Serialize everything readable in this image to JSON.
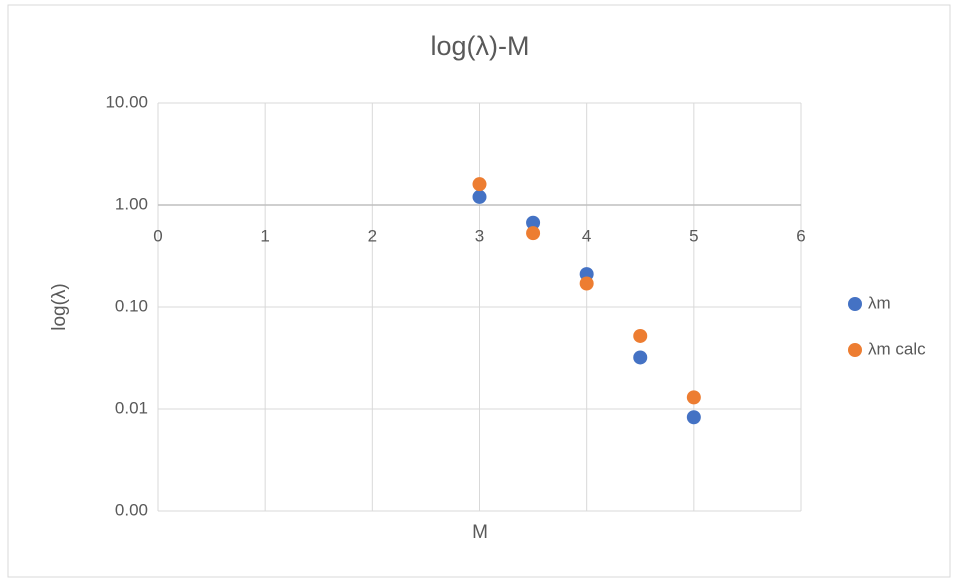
{
  "chart_data": {
    "type": "scatter",
    "title": "log(λ)-M",
    "x_label": "M",
    "y_label": "log(λ)",
    "series": [
      {
        "name": "λm",
        "color": "#4472c4",
        "x": [
          3,
          3.5,
          4,
          4.5,
          5
        ],
        "values": [
          1.2,
          0.67,
          0.21,
          0.032,
          0.0083
        ]
      },
      {
        "name": "λm calc",
        "color": "#ed7d31",
        "x": [
          3,
          3.5,
          4,
          4.5,
          5
        ],
        "values": [
          1.6,
          0.53,
          0.17,
          0.052,
          0.013
        ]
      }
    ],
    "xlim": [
      0,
      6
    ],
    "xticks": [
      0,
      1,
      2,
      3,
      4,
      5,
      6
    ],
    "ylim": [
      0.001,
      10
    ],
    "y_log": true,
    "yticks": [
      {
        "value": 0.001,
        "label": "0.00"
      },
      {
        "value": 0.01,
        "label": "0.01"
      },
      {
        "value": 0.1,
        "label": "0.10"
      },
      {
        "value": 1,
        "label": "1.00"
      },
      {
        "value": 10,
        "label": "10.00"
      }
    ],
    "x_axis_crosses_at": 1,
    "grid": true,
    "legend": "right"
  }
}
